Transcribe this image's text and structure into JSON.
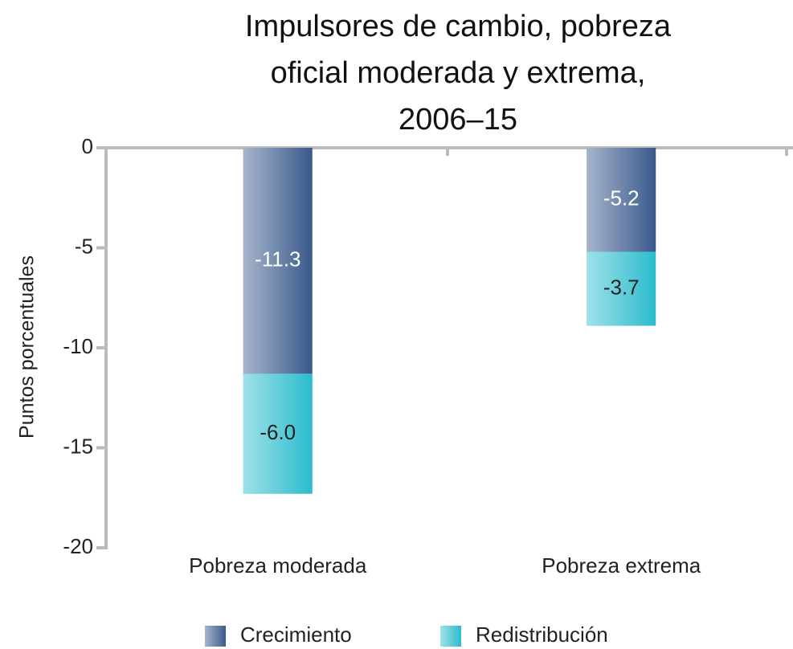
{
  "chart_data": {
    "type": "stacked_bar",
    "title": [
      "Impulsores de cambio, pobreza",
      "oficial moderada y extrema,",
      "2006–15"
    ],
    "ylabel": "Puntos porcentuales",
    "categories": [
      "Pobreza moderada",
      "Pobreza extrema"
    ],
    "series": [
      {
        "name": "Crecimiento",
        "color": "#3a5a8c",
        "values": [
          -11.3,
          -5.2
        ],
        "value_labels": [
          "-11.3",
          "-5.2"
        ]
      },
      {
        "name": "Redistribución",
        "color": "#2bbccd",
        "values": [
          -6.0,
          -3.7
        ],
        "value_labels": [
          "-6.0",
          "-3.7"
        ]
      }
    ],
    "ylim": [
      -20,
      0
    ],
    "yticks": [
      0,
      -5,
      -10,
      -15,
      -20
    ],
    "legend": "bottom"
  }
}
